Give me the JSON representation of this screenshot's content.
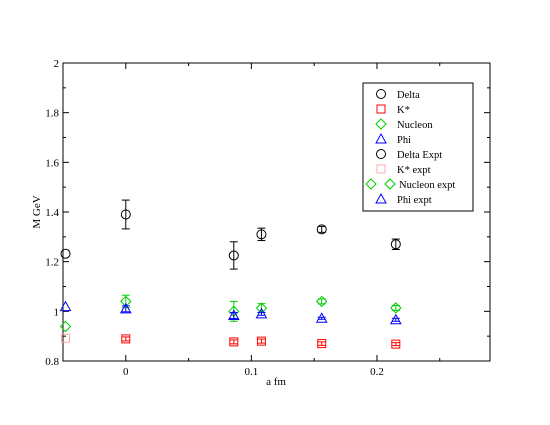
{
  "chart_data": {
    "type": "scatter",
    "xlabel": "a fm",
    "ylabel": "M GeV",
    "xlim": [
      -0.05,
      0.29
    ],
    "ylim": [
      0.8,
      2.0
    ],
    "xticks": [
      0,
      0.1,
      0.2
    ],
    "xtick_labels": [
      "0",
      "0.1",
      "0.2"
    ],
    "yticks": [
      0.8,
      1.0,
      1.2,
      1.4,
      1.6,
      1.8,
      2.0
    ],
    "ytick_labels": [
      "0.8",
      "1",
      "1.2",
      "1.4",
      "1.6",
      "1.8",
      "2"
    ],
    "legend_position": "top-right",
    "grid": false,
    "series": [
      {
        "name": "Delta",
        "marker": "circle",
        "color": "#000000",
        "lattice": true,
        "x": [
          0,
          0.086,
          0.108,
          0.156,
          0.215
        ],
        "y": [
          1.39,
          1.225,
          1.31,
          1.33,
          1.27
        ],
        "err": [
          0.058,
          0.055,
          0.025,
          0.012,
          0.021
        ]
      },
      {
        "name": "K*",
        "marker": "square",
        "color": "#ff0000",
        "lattice": true,
        "x": [
          0,
          0.086,
          0.108,
          0.156,
          0.215
        ],
        "y": [
          0.889,
          0.877,
          0.88,
          0.87,
          0.868
        ],
        "err": [
          0.008,
          0.008,
          0.008,
          0.007,
          0.006
        ]
      },
      {
        "name": "Nucleon",
        "marker": "diamond",
        "color": "#00cc00",
        "lattice": true,
        "x": [
          0,
          0.086,
          0.108,
          0.156,
          0.215
        ],
        "y": [
          1.04,
          1.0,
          1.013,
          1.04,
          1.014
        ],
        "err": [
          0.025,
          0.04,
          0.018,
          0.01,
          0.01
        ]
      },
      {
        "name": "Phi",
        "marker": "triangle",
        "color": "#0000ff",
        "lattice": true,
        "x": [
          0,
          0.086,
          0.108,
          0.156,
          0.215
        ],
        "y": [
          1.01,
          0.983,
          0.99,
          0.972,
          0.966
        ],
        "err": [
          0.012,
          0.012,
          0.006,
          0.004,
          0.006
        ]
      },
      {
        "name": "Delta Expt",
        "marker": "circle",
        "color": "#000000",
        "lattice": false,
        "x": [
          -0.048
        ],
        "y": [
          1.232
        ],
        "err": [
          0
        ]
      },
      {
        "name": "K* expt",
        "marker": "square",
        "color": "#ffaaaa",
        "lattice": false,
        "x": [
          -0.048
        ],
        "y": [
          0.892
        ],
        "err": [
          0
        ]
      },
      {
        "name": "Nucleon expt",
        "marker": "diamond",
        "color": "#00cc00",
        "lattice": false,
        "x": [
          -0.048
        ],
        "y": [
          0.939
        ],
        "err": [
          0
        ]
      },
      {
        "name": "Phi expt",
        "marker": "triangle",
        "color": "#0000ff",
        "lattice": false,
        "x": [
          -0.048
        ],
        "y": [
          1.019
        ],
        "err": [
          0
        ]
      }
    ]
  }
}
